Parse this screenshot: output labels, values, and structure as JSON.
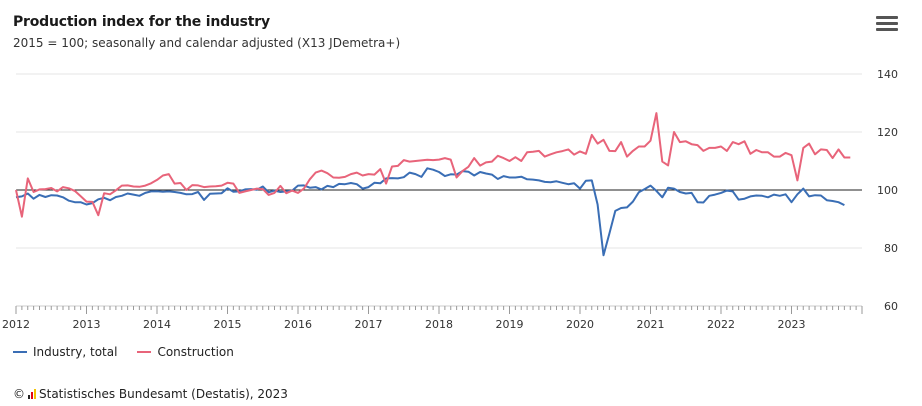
{
  "header": {
    "title": "Production index for the industry",
    "subtitle": "2015 = 100; seasonally and calendar adjusted (X13 JDemetra+)"
  },
  "menu": {
    "icon": "hamburger-menu-icon"
  },
  "legend": {
    "items": [
      {
        "label": "Industry, total",
        "color": "#3a6eb5"
      },
      {
        "label": "Construction",
        "color": "#e8647a"
      }
    ]
  },
  "credit": {
    "text": "© Statistisches Bundesamt (Destatis), 2023"
  },
  "chart_data": {
    "type": "line",
    "title": "Production index for the industry",
    "subtitle": "2015 = 100; seasonally and calendar adjusted (X13 JDemetra+)",
    "x_start": "2012-01",
    "x_frequency": "monthly",
    "x_ticks": [
      "2012",
      "2013",
      "2014",
      "2015",
      "2016",
      "2017",
      "2018",
      "2019",
      "2020",
      "2021",
      "2022",
      "2023"
    ],
    "ylim": [
      60,
      140
    ],
    "y_ticks": [
      60,
      80,
      100,
      120,
      140
    ],
    "reference_line": 100,
    "grid": true,
    "legend_position": "bottom-left",
    "series": [
      {
        "name": "Industry, total",
        "color": "#3a6eb5",
        "values": [
          97.5,
          97.8,
          98.8,
          97.0,
          98.3,
          97.6,
          98.2,
          98.1,
          97.5,
          96.3,
          95.8,
          95.8,
          95.0,
          95.5,
          96.8,
          97.3,
          96.5,
          97.6,
          98.0,
          98.8,
          98.4,
          98.0,
          99.0,
          99.5,
          99.6,
          99.4,
          99.5,
          99.3,
          99.0,
          98.5,
          98.6,
          99.3,
          96.6,
          98.7,
          98.8,
          98.9,
          100.6,
          99.4,
          99.5,
          100.2,
          100.3,
          100.1,
          101.2,
          99.2,
          99.8,
          99.3,
          99.5,
          99.8,
          101.5,
          101.6,
          100.8,
          101.0,
          100.2,
          101.4,
          101.0,
          102.1,
          102.0,
          102.4,
          102.0,
          100.5,
          101.0,
          102.5,
          102.3,
          104.0,
          104.1,
          104.0,
          104.4,
          106.0,
          105.5,
          104.5,
          107.5,
          107.0,
          106.2,
          104.8,
          105.4,
          105.3,
          106.5,
          106.3,
          105.0,
          106.2,
          105.7,
          105.3,
          103.8,
          104.8,
          104.3,
          104.3,
          104.6,
          103.7,
          103.6,
          103.3,
          102.8,
          102.7,
          103.0,
          102.5,
          102.0,
          102.3,
          100.5,
          103.2,
          103.3,
          95.0,
          77.5,
          85.0,
          92.8,
          93.8,
          94.0,
          96.0,
          99.2,
          100.3,
          101.5,
          99.7,
          97.5,
          100.8,
          100.5,
          99.3,
          98.8,
          99.0,
          95.8,
          95.7,
          98.0,
          98.4,
          99.0,
          99.8,
          99.5,
          96.7,
          97.0,
          97.8,
          98.1,
          98.0,
          97.5,
          98.4,
          98.0,
          98.5,
          95.8,
          98.5,
          100.5,
          97.8,
          98.2,
          98.1,
          96.5,
          96.2,
          95.8,
          94.8
        ]
      },
      {
        "name": "Construction",
        "color": "#e8647a",
        "values": [
          100.0,
          90.8,
          104.0,
          99.3,
          100.2,
          100.3,
          100.7,
          99.5,
          101.0,
          100.6,
          99.7,
          97.9,
          96.0,
          95.9,
          91.3,
          98.9,
          98.5,
          99.9,
          101.5,
          101.6,
          101.2,
          101.1,
          101.5,
          102.3,
          103.5,
          105.0,
          105.5,
          102.2,
          102.4,
          100.0,
          101.7,
          101.6,
          101.0,
          101.2,
          101.3,
          101.5,
          102.5,
          102.2,
          99.0,
          99.5,
          100.0,
          100.5,
          100.3,
          98.3,
          99.0,
          101.4,
          98.9,
          99.8,
          99.0,
          100.5,
          103.7,
          106.0,
          106.7,
          105.8,
          104.3,
          104.2,
          104.5,
          105.5,
          106.0,
          105.0,
          105.5,
          105.3,
          107.2,
          102.2,
          108.1,
          108.3,
          110.3,
          109.8,
          110.0,
          110.2,
          110.4,
          110.3,
          110.5,
          111.0,
          110.5,
          104.3,
          106.5,
          108.0,
          111.0,
          108.4,
          109.5,
          109.8,
          111.8,
          111.0,
          110.0,
          111.3,
          110.0,
          113.0,
          113.2,
          113.5,
          111.5,
          112.3,
          113.0,
          113.4,
          114.0,
          112.2,
          113.3,
          112.5,
          119.0,
          116.0,
          117.3,
          113.5,
          113.4,
          116.5,
          111.5,
          113.5,
          115.0,
          115.0,
          117.0,
          126.5,
          109.8,
          108.5,
          120.0,
          116.5,
          116.8,
          115.8,
          115.5,
          113.5,
          114.5,
          114.5,
          115.0,
          113.5,
          116.5,
          115.8,
          116.8,
          112.5,
          113.8,
          113.0,
          113.0,
          111.5,
          111.5,
          112.8,
          112.0,
          103.3,
          114.5,
          116.0,
          112.3,
          114.0,
          113.8,
          111.0,
          114.0,
          111.2,
          111.2
        ]
      }
    ]
  }
}
